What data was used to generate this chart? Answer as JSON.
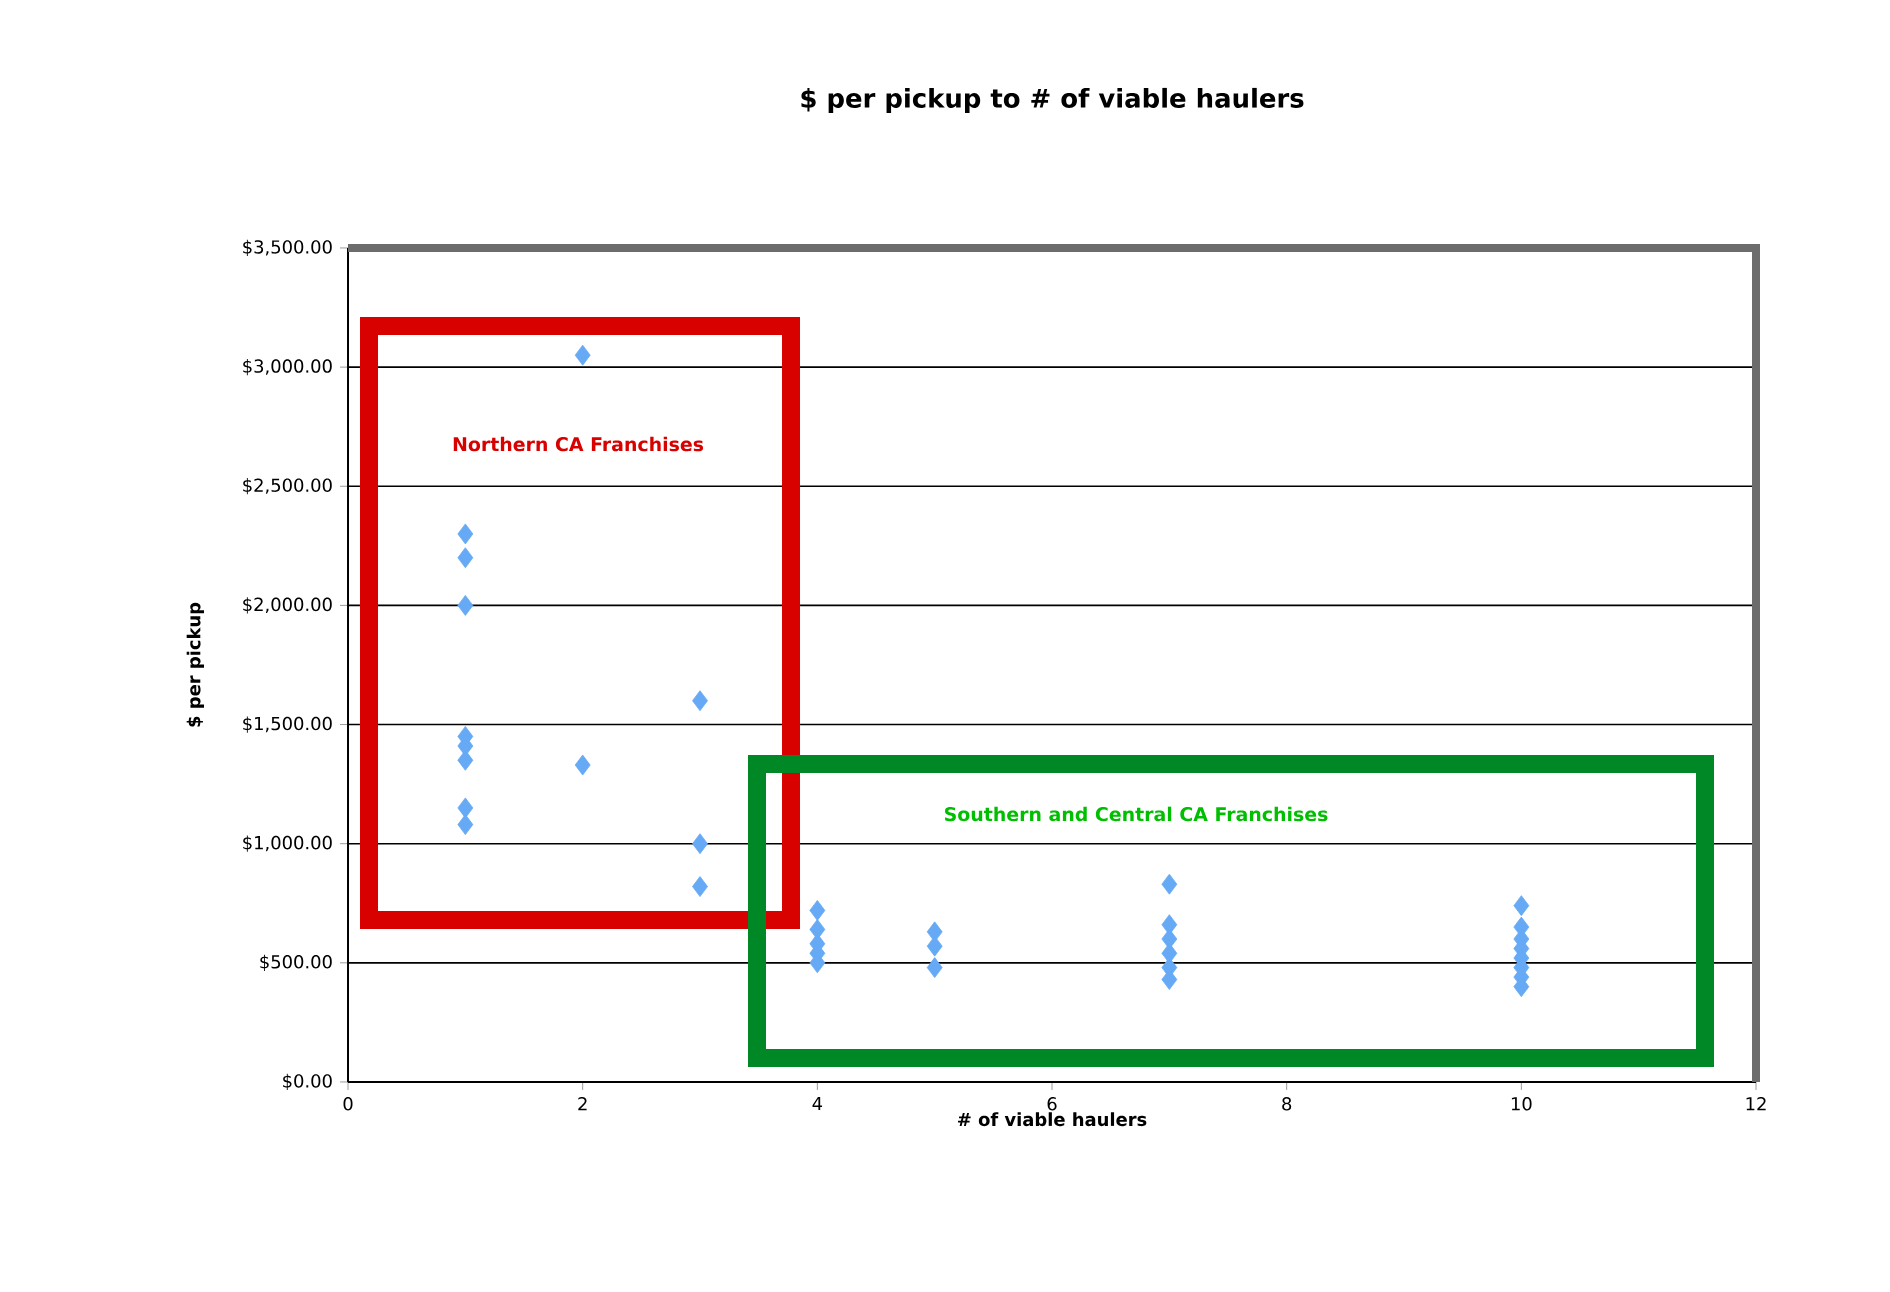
{
  "chart_data": {
    "type": "scatter",
    "title": "$ per pickup to # of viable haulers",
    "xlabel": "# of viable haulers",
    "ylabel": "$ per pickup",
    "annotations": [
      "Northern CA Franchises",
      "Southern and Central CA Franchises"
    ],
    "series": [
      {
        "color": "#66aaf5",
        "x": [
          2,
          1,
          1,
          1,
          1,
          1,
          1,
          1,
          1,
          2,
          3,
          3,
          3,
          4,
          4,
          4,
          4,
          4,
          5,
          5,
          5,
          7,
          7,
          7,
          7,
          7,
          7,
          10,
          10,
          10,
          10,
          10,
          10,
          10,
          10
        ],
        "values": [
          3050,
          2300,
          2200,
          2000,
          1450,
          1410,
          1350,
          1150,
          1080,
          1330,
          1600,
          1000,
          820,
          720,
          640,
          580,
          540,
          500,
          630,
          570,
          480,
          830,
          660,
          600,
          540,
          480,
          430,
          740,
          650,
          600,
          560,
          520,
          480,
          440,
          400
        ]
      }
    ],
    "xlim": [
      0,
      12
    ],
    "xticks": [
      0,
      2,
      4,
      6,
      8,
      10,
      12
    ],
    "ylim": [
      0,
      3500
    ],
    "yticks": [
      {
        "value": 0,
        "label": "$0.00"
      },
      {
        "value": 500,
        "label": "$500.00"
      },
      {
        "value": 1000,
        "label": "$1,000.00"
      },
      {
        "value": 1500,
        "label": "$1,500.00"
      },
      {
        "value": 2000,
        "label": "$2,000.00"
      },
      {
        "value": 2500,
        "label": "$2,500.00"
      },
      {
        "value": 3000,
        "label": "$3,000.00"
      },
      {
        "value": 3500,
        "label": "$3,500.00"
      }
    ],
    "grid": "y",
    "marker": "diamond"
  }
}
